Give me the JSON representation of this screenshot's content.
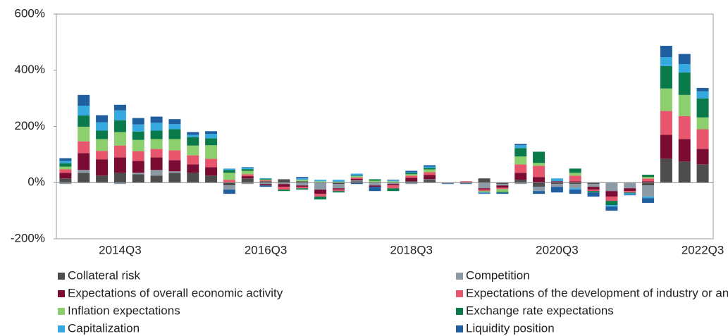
{
  "chart_data": {
    "type": "stacked-bar",
    "categories": [
      null,
      null,
      null,
      "2014Q3",
      null,
      null,
      null,
      null,
      null,
      null,
      null,
      "2016Q3",
      null,
      null,
      null,
      null,
      null,
      null,
      null,
      "2018Q3",
      null,
      null,
      null,
      null,
      null,
      null,
      null,
      "2020Q3",
      null,
      null,
      null,
      null,
      null,
      null,
      null,
      "2022Q3"
    ],
    "ylim": [
      -200,
      600
    ],
    "yticks": [
      {
        "value": -200,
        "label": "-200%"
      },
      {
        "value": 0,
        "label": "0%"
      },
      {
        "value": 200,
        "label": "200%"
      },
      {
        "value": 400,
        "label": "400%"
      },
      {
        "value": 600,
        "label": "600%"
      }
    ],
    "series": [
      {
        "name": "Collateral risk",
        "color": "#4d4d4d",
        "values": [
          15,
          35,
          25,
          35,
          30,
          25,
          35,
          35,
          25,
          -10,
          15,
          5,
          12,
          5,
          0,
          -5,
          5,
          2,
          0,
          5,
          10,
          0,
          2,
          15,
          -5,
          10,
          -15,
          -5,
          -5,
          -5,
          0,
          0,
          -10,
          85,
          75,
          65
        ]
      },
      {
        "name": "Competition",
        "color": "#8c9aa5",
        "values": [
          -5,
          10,
          0,
          -5,
          5,
          20,
          5,
          0,
          0,
          -15,
          -5,
          -5,
          -5,
          -10,
          -25,
          -15,
          3,
          -10,
          -5,
          -5,
          2,
          -3,
          -3,
          -20,
          -5,
          -5,
          -15,
          -10,
          -15,
          -10,
          -30,
          -20,
          -40,
          0,
          0,
          0
        ]
      },
      {
        "name": "Expectations of overall economic activity",
        "color": "#7a0c34",
        "values": [
          20,
          60,
          58,
          55,
          42,
          45,
          40,
          30,
          30,
          0,
          8,
          -5,
          -10,
          -5,
          -15,
          -5,
          5,
          -5,
          -5,
          12,
          15,
          0,
          0,
          -5,
          -8,
          25,
          20,
          5,
          5,
          -10,
          -20,
          -10,
          5,
          85,
          80,
          55
        ]
      },
      {
        "name": "Expectations of the development of industry or an enterprise",
        "color": "#e8566e",
        "values": [
          12,
          42,
          30,
          42,
          35,
          30,
          35,
          32,
          30,
          10,
          7,
          3,
          -10,
          -5,
          -10,
          -5,
          5,
          0,
          -10,
          8,
          10,
          0,
          3,
          -5,
          -5,
          30,
          40,
          0,
          20,
          -5,
          -15,
          -5,
          10,
          85,
          82,
          70
        ]
      },
      {
        "name": "Inflation expectations",
        "color": "#8ccf6e",
        "values": [
          10,
          52,
          42,
          48,
          40,
          35,
          40,
          35,
          48,
          25,
          12,
          3,
          0,
          5,
          5,
          3,
          5,
          5,
          5,
          5,
          10,
          0,
          0,
          -3,
          -10,
          28,
          10,
          0,
          10,
          0,
          0,
          0,
          5,
          80,
          75,
          42
        ]
      },
      {
        "name": "Exchange rate expectations",
        "color": "#0a7a4a",
        "values": [
          12,
          40,
          30,
          42,
          30,
          30,
          35,
          30,
          25,
          10,
          6,
          3,
          -5,
          -5,
          -10,
          -5,
          2,
          5,
          -10,
          5,
          5,
          0,
          0,
          -2,
          -3,
          30,
          40,
          0,
          15,
          -5,
          -15,
          -3,
          8,
          80,
          80,
          68
        ]
      },
      {
        "name": "Capitalization",
        "color": "#36a9e1",
        "values": [
          8,
          35,
          30,
          35,
          25,
          28,
          18,
          8,
          15,
          5,
          5,
          2,
          0,
          5,
          5,
          7,
          7,
          0,
          3,
          2,
          5,
          0,
          0,
          -3,
          0,
          10,
          0,
          10,
          -5,
          0,
          -5,
          -5,
          -5,
          32,
          30,
          25
        ]
      },
      {
        "name": "Liquidity position",
        "color": "#1f5fa0",
        "values": [
          10,
          38,
          25,
          20,
          23,
          22,
          18,
          10,
          10,
          -15,
          2,
          -5,
          0,
          5,
          0,
          0,
          -5,
          -15,
          2,
          5,
          5,
          -2,
          -2,
          -2,
          -4,
          5,
          -10,
          -20,
          -15,
          -15,
          -15,
          -2,
          -17,
          40,
          36,
          12
        ]
      }
    ]
  }
}
